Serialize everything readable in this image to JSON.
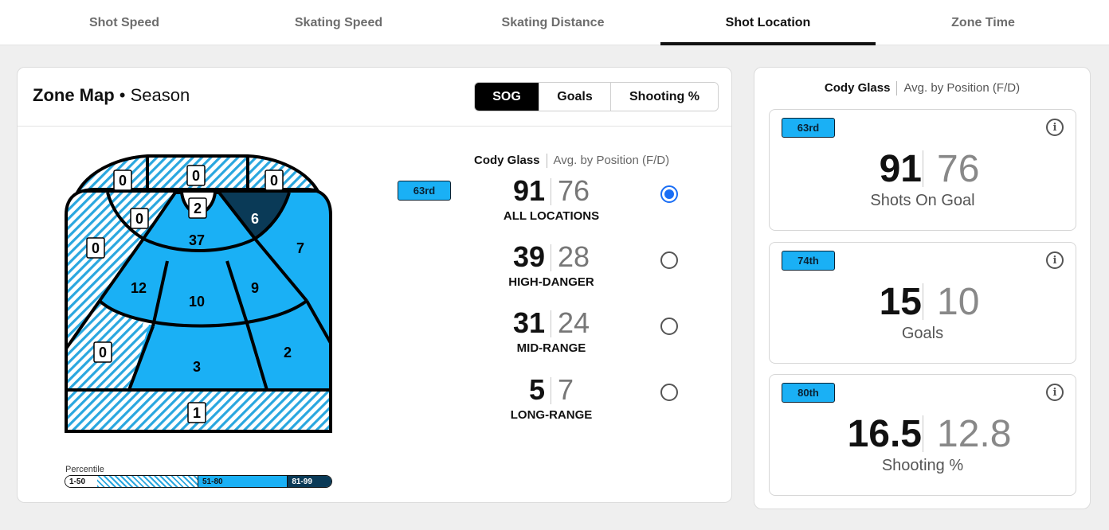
{
  "tabs": [
    {
      "label": "Shot Speed",
      "active": false
    },
    {
      "label": "Skating Speed",
      "active": false
    },
    {
      "label": "Skating Distance",
      "active": false
    },
    {
      "label": "Shot Location",
      "active": true
    },
    {
      "label": "Zone Time",
      "active": false
    }
  ],
  "zone_map": {
    "title": "Zone Map",
    "subtitle": "• Season",
    "toggle": [
      {
        "label": "SOG",
        "active": true
      },
      {
        "label": "Goals",
        "active": false
      },
      {
        "label": "Shooting %",
        "active": false
      }
    ],
    "zones": {
      "top_left": "0",
      "top_center": "0",
      "top_right": "0",
      "upper_left_slot": "0",
      "crease": "2",
      "upper_right_slot": "6",
      "left_wall": "0",
      "right_wall": "7",
      "slot": "37",
      "left_circle": "12",
      "center_slot": "10",
      "right_circle": "9",
      "left_point": "0",
      "high_slot": "3",
      "right_point": "2",
      "blue_line": "1"
    },
    "legend": {
      "title": "Percentile",
      "ranges": [
        "1-50",
        "51-80",
        "81-99"
      ]
    },
    "header": {
      "player": "Cody Glass",
      "avg": "Avg. by Position (F/D)"
    },
    "percentile_badge": "63rd",
    "stats": [
      {
        "value": "91",
        "avg": "76",
        "label": "ALL LOCATIONS",
        "selected": true
      },
      {
        "value": "39",
        "avg": "28",
        "label": "HIGH-DANGER",
        "selected": false
      },
      {
        "value": "31",
        "avg": "24",
        "label": "MID-RANGE",
        "selected": false
      },
      {
        "value": "5",
        "avg": "7",
        "label": "LONG-RANGE",
        "selected": false
      }
    ]
  },
  "summary": {
    "header": {
      "player": "Cody Glass",
      "avg": "Avg. by Position (F/D)"
    },
    "cards": [
      {
        "badge": "63rd",
        "value": "91",
        "avg": "76",
        "label": "Shots On Goal"
      },
      {
        "badge": "74th",
        "value": "15",
        "avg": "10",
        "label": "Goals"
      },
      {
        "badge": "80th",
        "value": "16.5",
        "avg": "12.8",
        "label": "Shooting %"
      }
    ]
  },
  "colors": {
    "mid_blue": "#1ab0f5",
    "dark_navy": "#0a3a57",
    "hatch_light": "#2aa7df",
    "radio_blue": "#1a6ef5"
  }
}
